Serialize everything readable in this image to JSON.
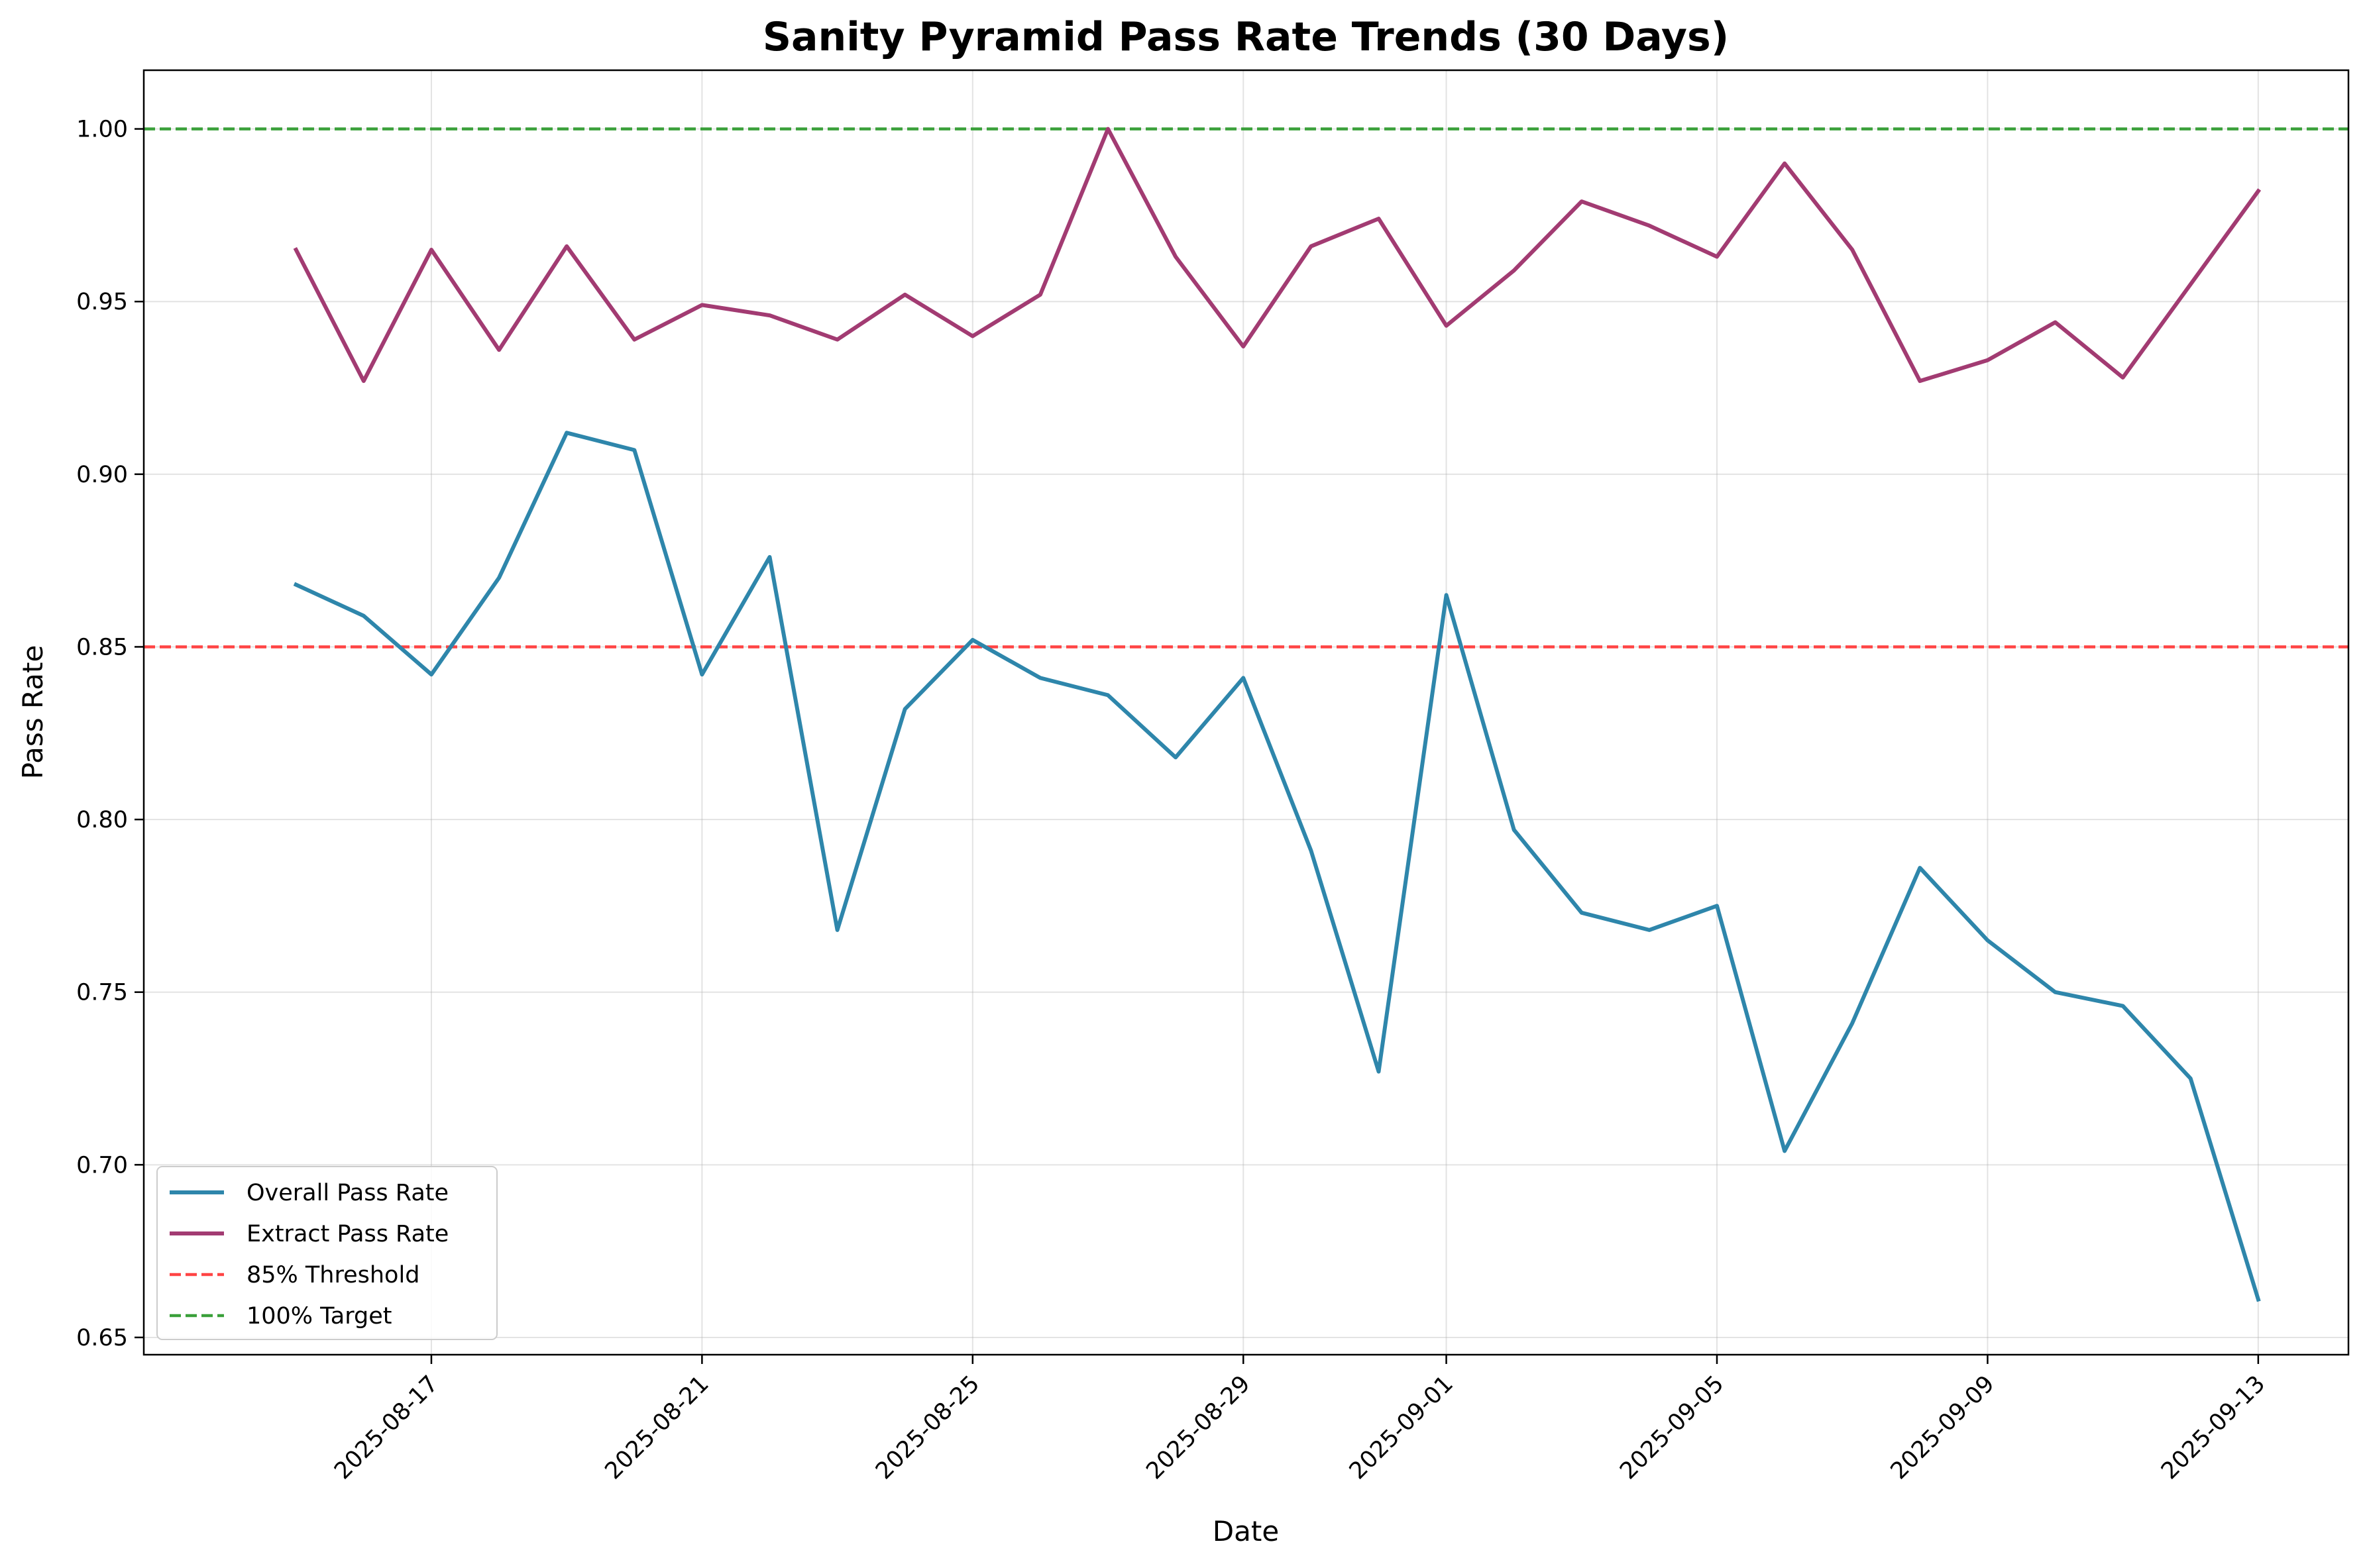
{
  "chart_data": {
    "type": "line",
    "title": "Sanity Pyramid Pass Rate Trends (30 Days)",
    "xlabel": "Date",
    "ylabel": "Pass Rate",
    "ylim": [
      0.645,
      1.017
    ],
    "xlim": [
      "2025-08-12T18:00",
      "2025-09-14T08:00"
    ],
    "yticks": [
      0.65,
      0.7,
      0.75,
      0.8,
      0.85,
      0.9,
      0.95,
      1.0
    ],
    "ytick_labels": [
      "0.65",
      "0.70",
      "0.75",
      "0.80",
      "0.85",
      "0.90",
      "0.95",
      "1.00"
    ],
    "xticks": [
      "2025-08-17",
      "2025-08-21",
      "2025-08-25",
      "2025-08-29",
      "2025-09-01",
      "2025-09-05",
      "2025-09-09",
      "2025-09-13"
    ],
    "x_tick_rotation": 45,
    "grid": true,
    "legend_position": "lower left",
    "x": [
      "2025-08-15",
      "2025-08-16",
      "2025-08-17",
      "2025-08-18",
      "2025-08-19",
      "2025-08-20",
      "2025-08-21",
      "2025-08-22",
      "2025-08-23",
      "2025-08-24",
      "2025-08-25",
      "2025-08-26",
      "2025-08-27",
      "2025-08-28",
      "2025-08-29",
      "2025-08-30",
      "2025-08-31",
      "2025-09-01",
      "2025-09-02",
      "2025-09-03",
      "2025-09-04",
      "2025-09-05",
      "2025-09-06",
      "2025-09-07",
      "2025-09-08",
      "2025-09-09",
      "2025-09-10",
      "2025-09-11",
      "2025-09-12",
      "2025-09-13"
    ],
    "series": [
      {
        "name": "Overall Pass Rate",
        "color": "#2e86ab",
        "style": "solid",
        "values": [
          0.868,
          0.859,
          0.842,
          0.87,
          0.912,
          0.907,
          0.842,
          0.876,
          0.768,
          0.832,
          0.852,
          0.841,
          0.836,
          0.818,
          0.841,
          0.791,
          0.727,
          0.865,
          0.797,
          0.773,
          0.768,
          0.775,
          0.704,
          0.741,
          0.786,
          0.765,
          0.75,
          0.746,
          0.725,
          0.661
        ]
      },
      {
        "name": "Extract Pass Rate",
        "color": "#a23b72",
        "style": "solid",
        "values": [
          0.965,
          0.927,
          0.965,
          0.936,
          0.966,
          0.939,
          0.949,
          0.946,
          0.939,
          0.952,
          0.94,
          0.952,
          1.0,
          0.963,
          0.937,
          0.966,
          0.974,
          0.943,
          0.959,
          0.979,
          0.972,
          0.963,
          0.99,
          0.965,
          0.927,
          0.933,
          0.944,
          0.928,
          0.955,
          0.982
        ]
      }
    ],
    "reference_lines": [
      {
        "name": "85% Threshold",
        "y": 0.85,
        "color": "#ff4444",
        "style": "dashed"
      },
      {
        "name": "100% Target",
        "y": 1.0,
        "color": "#3aa03a",
        "style": "dashed"
      }
    ]
  }
}
